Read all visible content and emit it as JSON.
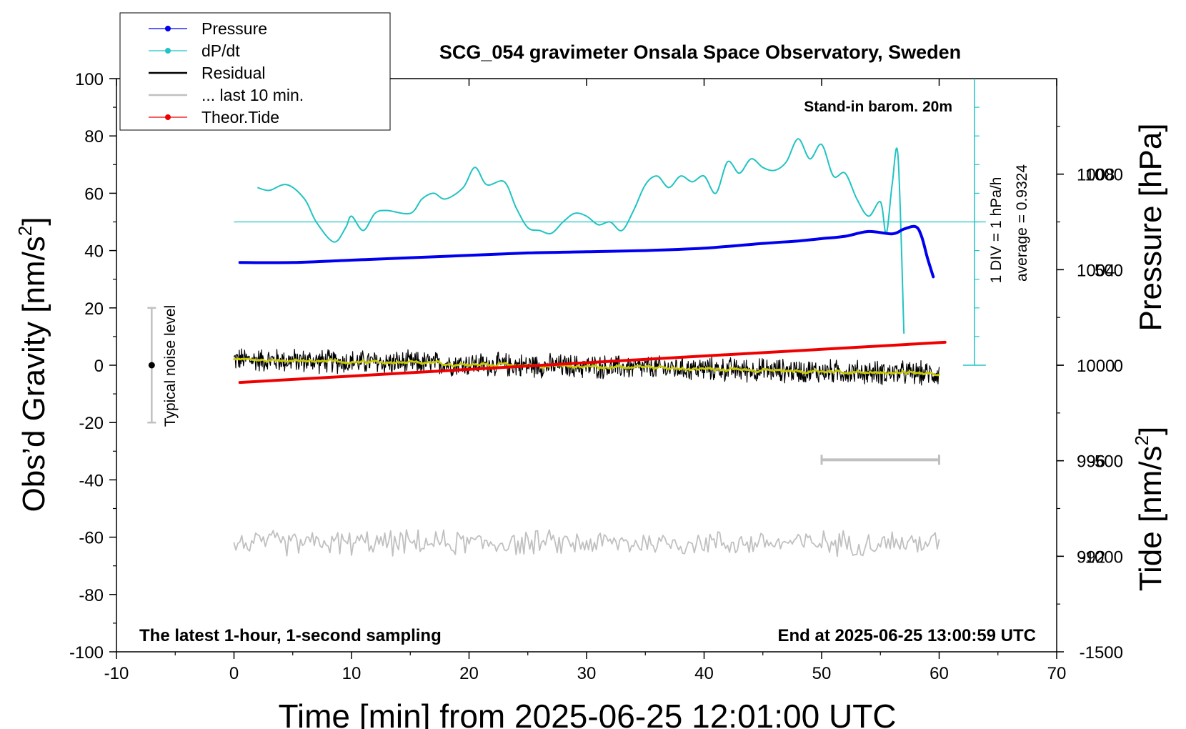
{
  "chart_data": {
    "type": "line",
    "title": "SCG_054 gravimeter Onsala Space Observatory, Sweden",
    "xlabel": "Time [min] from 2025-06-25 12:01:00 UTC",
    "ylabel_left_main": "Obs’d Gravity [nm/s",
    "ylabel_left_sup": "2",
    "ylabel_left_close": "]",
    "ylabel_right_pressure": "Pressure [hPa]",
    "ylabel_right_tide_main": "Tide [nm/s",
    "ylabel_right_tide_sup": "2",
    "ylabel_right_tide_close": "]",
    "xlim": [
      -10,
      70
    ],
    "ylim": [
      -100,
      100
    ],
    "x_ticks": [
      "-10",
      "0",
      "10",
      "20",
      "30",
      "40",
      "50",
      "60",
      "70"
    ],
    "y_ticks": [
      "-100",
      "-80",
      "-60",
      "-40",
      "-20",
      "0",
      "20",
      "40",
      "60",
      "80",
      "100"
    ],
    "pressure_axis": {
      "range": [
        988,
        1012
      ],
      "ticks": [
        "992",
        "996",
        "1000",
        "1004",
        "1008"
      ]
    },
    "tide_axis": {
      "range": [
        -1500,
        1500
      ],
      "ticks": [
        "-1500",
        "-1000",
        "-500",
        "0",
        "500",
        "1000"
      ]
    },
    "annotations": {
      "stand_in": "Stand-in barom. 20m",
      "latest": "The latest 1-hour, 1-second sampling",
      "end_at": "End at 2025-06-25 13:00:59 UTC",
      "noise": "Typical noise level",
      "div": "1 DIV = 1 hPa/h",
      "average": "average = 0.9324"
    },
    "legend": [
      {
        "label": "Pressure",
        "color": "#0000ee",
        "marker": true
      },
      {
        "label": "dP/dt",
        "color": "#22c3c3",
        "marker": true
      },
      {
        "label": "Residual",
        "color": "#000000",
        "marker": false
      },
      {
        "label": "... last 10 min.",
        "color": "#c0c0c0",
        "marker": false
      },
      {
        "label": "Theor.Tide",
        "color": "#ee0000",
        "marker": true
      }
    ],
    "series": [
      {
        "name": "Pressure",
        "units": "hPa",
        "color": "#0000ee",
        "x": [
          0.5,
          5,
          10,
          15,
          20,
          25,
          30,
          35,
          40,
          45,
          48,
          50,
          52,
          54,
          56,
          57,
          58,
          58.5,
          59,
          59.5
        ],
        "values": [
          1004.3,
          1004.3,
          1004.4,
          1004.5,
          1004.6,
          1004.7,
          1004.75,
          1004.8,
          1004.9,
          1005.1,
          1005.2,
          1005.3,
          1005.4,
          1005.6,
          1005.5,
          1005.7,
          1005.8,
          1005.4,
          1004.5,
          1003.7
        ]
      },
      {
        "name": "dP/dt",
        "units": "gravity-axis units",
        "color": "#22c3c3",
        "baseline": 50,
        "x": [
          2,
          3,
          4.5,
          6,
          7,
          8.5,
          9.5,
          10,
          11,
          12,
          13,
          15,
          16,
          17,
          18,
          19.5,
          20.5,
          21.5,
          23,
          24,
          25,
          26,
          27,
          28,
          29,
          30,
          31,
          32,
          33,
          34,
          35,
          36,
          37,
          38,
          39,
          40,
          41,
          42,
          43,
          44,
          45,
          46,
          47,
          48,
          49,
          50,
          51,
          52,
          53,
          54,
          55,
          55.5,
          56,
          56.5,
          57
        ],
        "values": [
          62,
          61,
          63,
          58,
          50,
          43,
          48,
          52,
          47,
          53,
          54,
          53,
          58,
          60,
          58,
          62,
          69,
          63,
          64,
          55,
          48,
          47,
          46,
          50,
          53,
          52,
          49,
          50,
          47,
          54,
          63,
          66,
          62,
          66,
          64,
          66,
          60,
          71,
          67,
          72,
          69,
          68,
          71,
          79,
          72,
          77,
          66,
          67,
          58,
          52,
          57,
          46,
          63,
          73,
          11
        ]
      },
      {
        "name": "Residual",
        "color": "#000000",
        "x_range": [
          0,
          60
        ],
        "center_start": 2,
        "center_end": -3,
        "noise_amplitude": 4
      },
      {
        "name": "Residual smoothed",
        "color": "#c8c800",
        "x_range": [
          0,
          60
        ],
        "center_start": 2,
        "center_end": -3
      },
      {
        "name": "Theor.Tide",
        "units": "nm/s2",
        "color": "#ee0000",
        "x": [
          0.5,
          60.5
        ],
        "values": [
          -90,
          120
        ]
      },
      {
        "name": "... last 10 min.",
        "color": "#c0c0c0",
        "x_range": [
          0,
          60
        ],
        "center": -62,
        "noise_amplitude": 4
      }
    ],
    "noise_bar": {
      "x": -7,
      "center": 0,
      "low": -20,
      "high": 20
    },
    "ten_min_bar": {
      "x": [
        50,
        60
      ],
      "y": -33
    }
  }
}
